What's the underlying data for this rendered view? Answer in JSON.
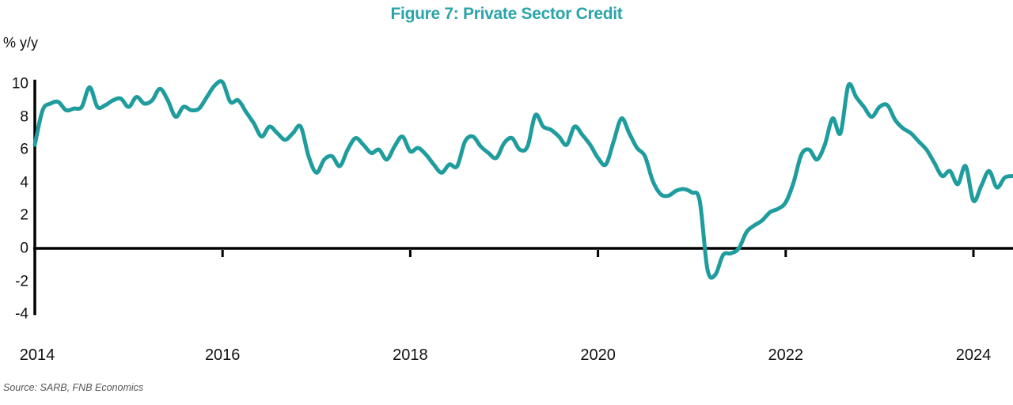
{
  "title": "Figure 7: Private Sector Credit",
  "source": "Source: SARB, FNB Economics",
  "colors": {
    "title": "#2ba4a9",
    "line": "#1f9c9d",
    "axis": "#000000",
    "tick_label": "#111111",
    "source_text": "#555555"
  },
  "chart_data": {
    "type": "line",
    "title": "Figure 7: Private Sector Credit",
    "xlabel": "",
    "ylabel": "% y/y",
    "x_tick_labels": [
      "2014",
      "2016",
      "2018",
      "2020",
      "2022",
      "2024"
    ],
    "x_tick_years": [
      2014,
      2016,
      2018,
      2020,
      2022,
      2024
    ],
    "y_tick_labels": [
      "10",
      "8",
      "6",
      "4",
      "2",
      "0",
      "-2",
      "-4"
    ],
    "y_tick_values": [
      10,
      8,
      6,
      4,
      2,
      0,
      -2,
      -4
    ],
    "ylim": [
      -4,
      10.3
    ],
    "xlim": [
      2014,
      2024.45
    ],
    "grid": false,
    "legend_position": "none",
    "series": [
      {
        "name": "Private sector credit, % y/y",
        "frequency": "monthly",
        "start_year": 2014,
        "start_month": 1,
        "values": [
          6.3,
          8.4,
          8.8,
          8.9,
          8.4,
          8.5,
          8.6,
          9.8,
          8.6,
          8.7,
          9.0,
          9.1,
          8.6,
          9.2,
          8.8,
          9.0,
          9.7,
          9.0,
          8.0,
          8.6,
          8.4,
          8.5,
          9.2,
          9.9,
          10.1,
          8.9,
          9.0,
          8.3,
          7.6,
          6.8,
          7.4,
          7.0,
          6.6,
          7.0,
          7.4,
          5.6,
          4.6,
          5.4,
          5.6,
          5.0,
          6.0,
          6.7,
          6.3,
          5.8,
          6.0,
          5.4,
          6.2,
          6.8,
          5.9,
          6.1,
          5.7,
          5.1,
          4.6,
          5.1,
          5.0,
          6.5,
          6.8,
          6.2,
          5.8,
          5.5,
          6.4,
          6.7,
          6.0,
          6.2,
          8.1,
          7.4,
          7.2,
          6.8,
          6.3,
          7.4,
          6.9,
          6.3,
          5.5,
          5.1,
          6.5,
          7.9,
          7.0,
          6.1,
          5.6,
          4.1,
          3.3,
          3.2,
          3.5,
          3.6,
          3.4,
          2.9,
          -1.3,
          -1.6,
          -0.4,
          -0.3,
          0.0,
          1.0,
          1.4,
          1.7,
          2.2,
          2.4,
          2.8,
          4.0,
          5.7,
          6.0,
          5.4,
          6.3,
          7.9,
          7.0,
          9.9,
          9.2,
          8.6,
          8.0,
          8.6,
          8.7,
          7.8,
          7.3,
          7.0,
          6.5,
          6.0,
          5.2,
          4.4,
          4.7,
          3.9,
          5.0,
          2.9,
          3.8,
          4.7,
          3.7,
          4.3,
          4.4
        ]
      }
    ]
  }
}
